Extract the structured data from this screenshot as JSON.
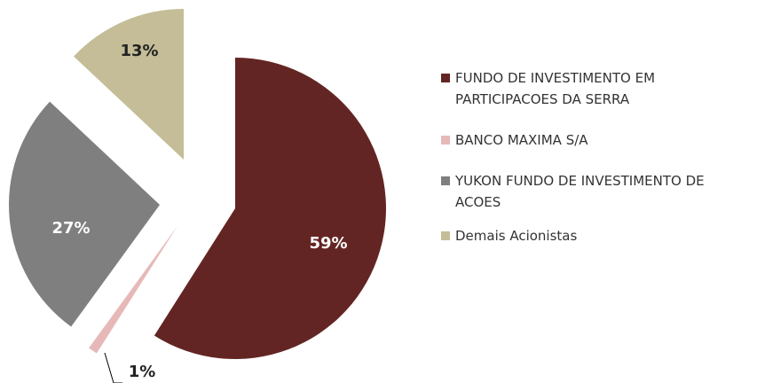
{
  "chart_data": {
    "type": "pie",
    "categories": [
      "FUNDO DE INVESTIMENTO EM PARTICIPACOES DA SERRA",
      "BANCO MAXIMA S/A",
      "YUKON FUNDO DE INVESTIMENTO DE ACOES",
      "Demais Acionistas"
    ],
    "values": [
      59,
      1,
      27,
      13
    ],
    "value_labels": [
      "59%",
      "1%",
      "27%",
      "13%"
    ],
    "colors": [
      "#632523",
      "#e6b9b8",
      "#7f7f7f",
      "#c4bd97"
    ],
    "legend": "right"
  }
}
